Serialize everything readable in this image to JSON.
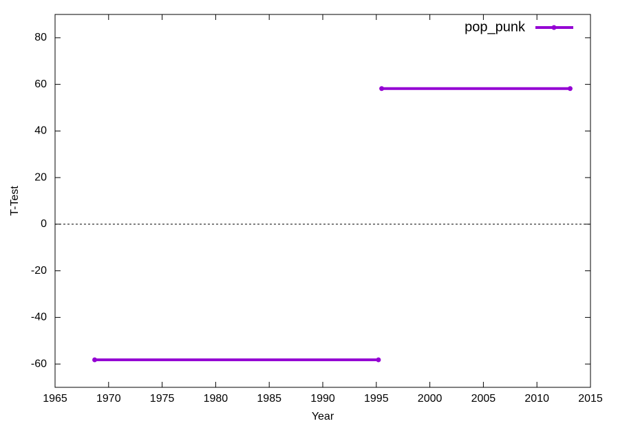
{
  "chart_data": {
    "type": "line",
    "x_label": "Year",
    "y_label": "T-Test",
    "x": [
      1968.7,
      1995.2,
      1995.3,
      1995.5,
      2013.1
    ],
    "series": [
      {
        "name": "pop_punk",
        "color": "#9400d3",
        "values": [
          -58.2,
          -58.2,
          null,
          58.2,
          58.2
        ]
      }
    ],
    "xlim": [
      1965,
      2015
    ],
    "xticks": [
      1965,
      1970,
      1975,
      1980,
      1985,
      1990,
      1995,
      2000,
      2005,
      2010,
      2015
    ],
    "ylim": [
      -70,
      90
    ],
    "yticks": [
      -60,
      -40,
      -20,
      0,
      20,
      40,
      60,
      80
    ],
    "zero_line": true,
    "legend": "top-right",
    "markers": true
  }
}
